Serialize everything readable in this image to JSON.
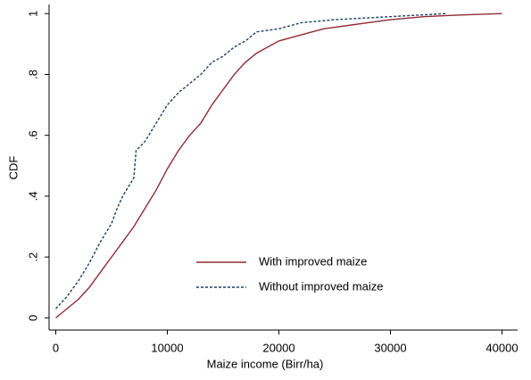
{
  "chart_data": {
    "type": "line",
    "x_label": "Maize income (Birr/ha)",
    "y_label": "CDF",
    "xlim": [
      -600,
      41400
    ],
    "ylim": [
      -0.04,
      1.03
    ],
    "xticks": [
      0,
      10000,
      20000,
      30000,
      40000
    ],
    "yticks": [
      0,
      {
        "value": 0.2,
        "label": ".2"
      },
      {
        "value": 0.4,
        "label": ".4"
      },
      {
        "value": 0.6,
        "label": ".6"
      },
      {
        "value": 0.8,
        "label": ".8"
      },
      1
    ],
    "grid": false,
    "legend": "bottom-center",
    "series": [
      {
        "name": "With improved maize",
        "color": "#8e2c36",
        "dash": "solid",
        "x": [
          0,
          1000,
          2000,
          3000,
          4000,
          5000,
          6000,
          7000,
          8000,
          9000,
          10000,
          11000,
          12000,
          13000,
          14000,
          15000,
          16000,
          17000,
          18000,
          19000,
          20000,
          22000,
          24000,
          26000,
          28000,
          30000,
          33000,
          36000,
          40000
        ],
        "values": [
          0,
          0.03,
          0.06,
          0.1,
          0.15,
          0.2,
          0.25,
          0.3,
          0.36,
          0.42,
          0.49,
          0.55,
          0.6,
          0.64,
          0.7,
          0.75,
          0.8,
          0.84,
          0.87,
          0.89,
          0.91,
          0.93,
          0.95,
          0.96,
          0.97,
          0.98,
          0.99,
          0.995,
          1
        ]
      },
      {
        "name": "Without improved maize",
        "color": "#1f3f66",
        "dash": "dashed",
        "x": [
          0,
          500,
          1000,
          2000,
          3000,
          4000,
          5000,
          5500,
          6000,
          7000,
          7200,
          8000,
          9000,
          10000,
          11000,
          12000,
          13000,
          14000,
          15000,
          16000,
          17000,
          18000,
          20000,
          22000,
          25000,
          30000,
          35000
        ],
        "values": [
          0.03,
          0.05,
          0.07,
          0.12,
          0.18,
          0.25,
          0.31,
          0.36,
          0.4,
          0.46,
          0.55,
          0.58,
          0.64,
          0.7,
          0.74,
          0.77,
          0.8,
          0.84,
          0.86,
          0.89,
          0.91,
          0.94,
          0.95,
          0.97,
          0.98,
          0.99,
          1
        ]
      }
    ]
  }
}
